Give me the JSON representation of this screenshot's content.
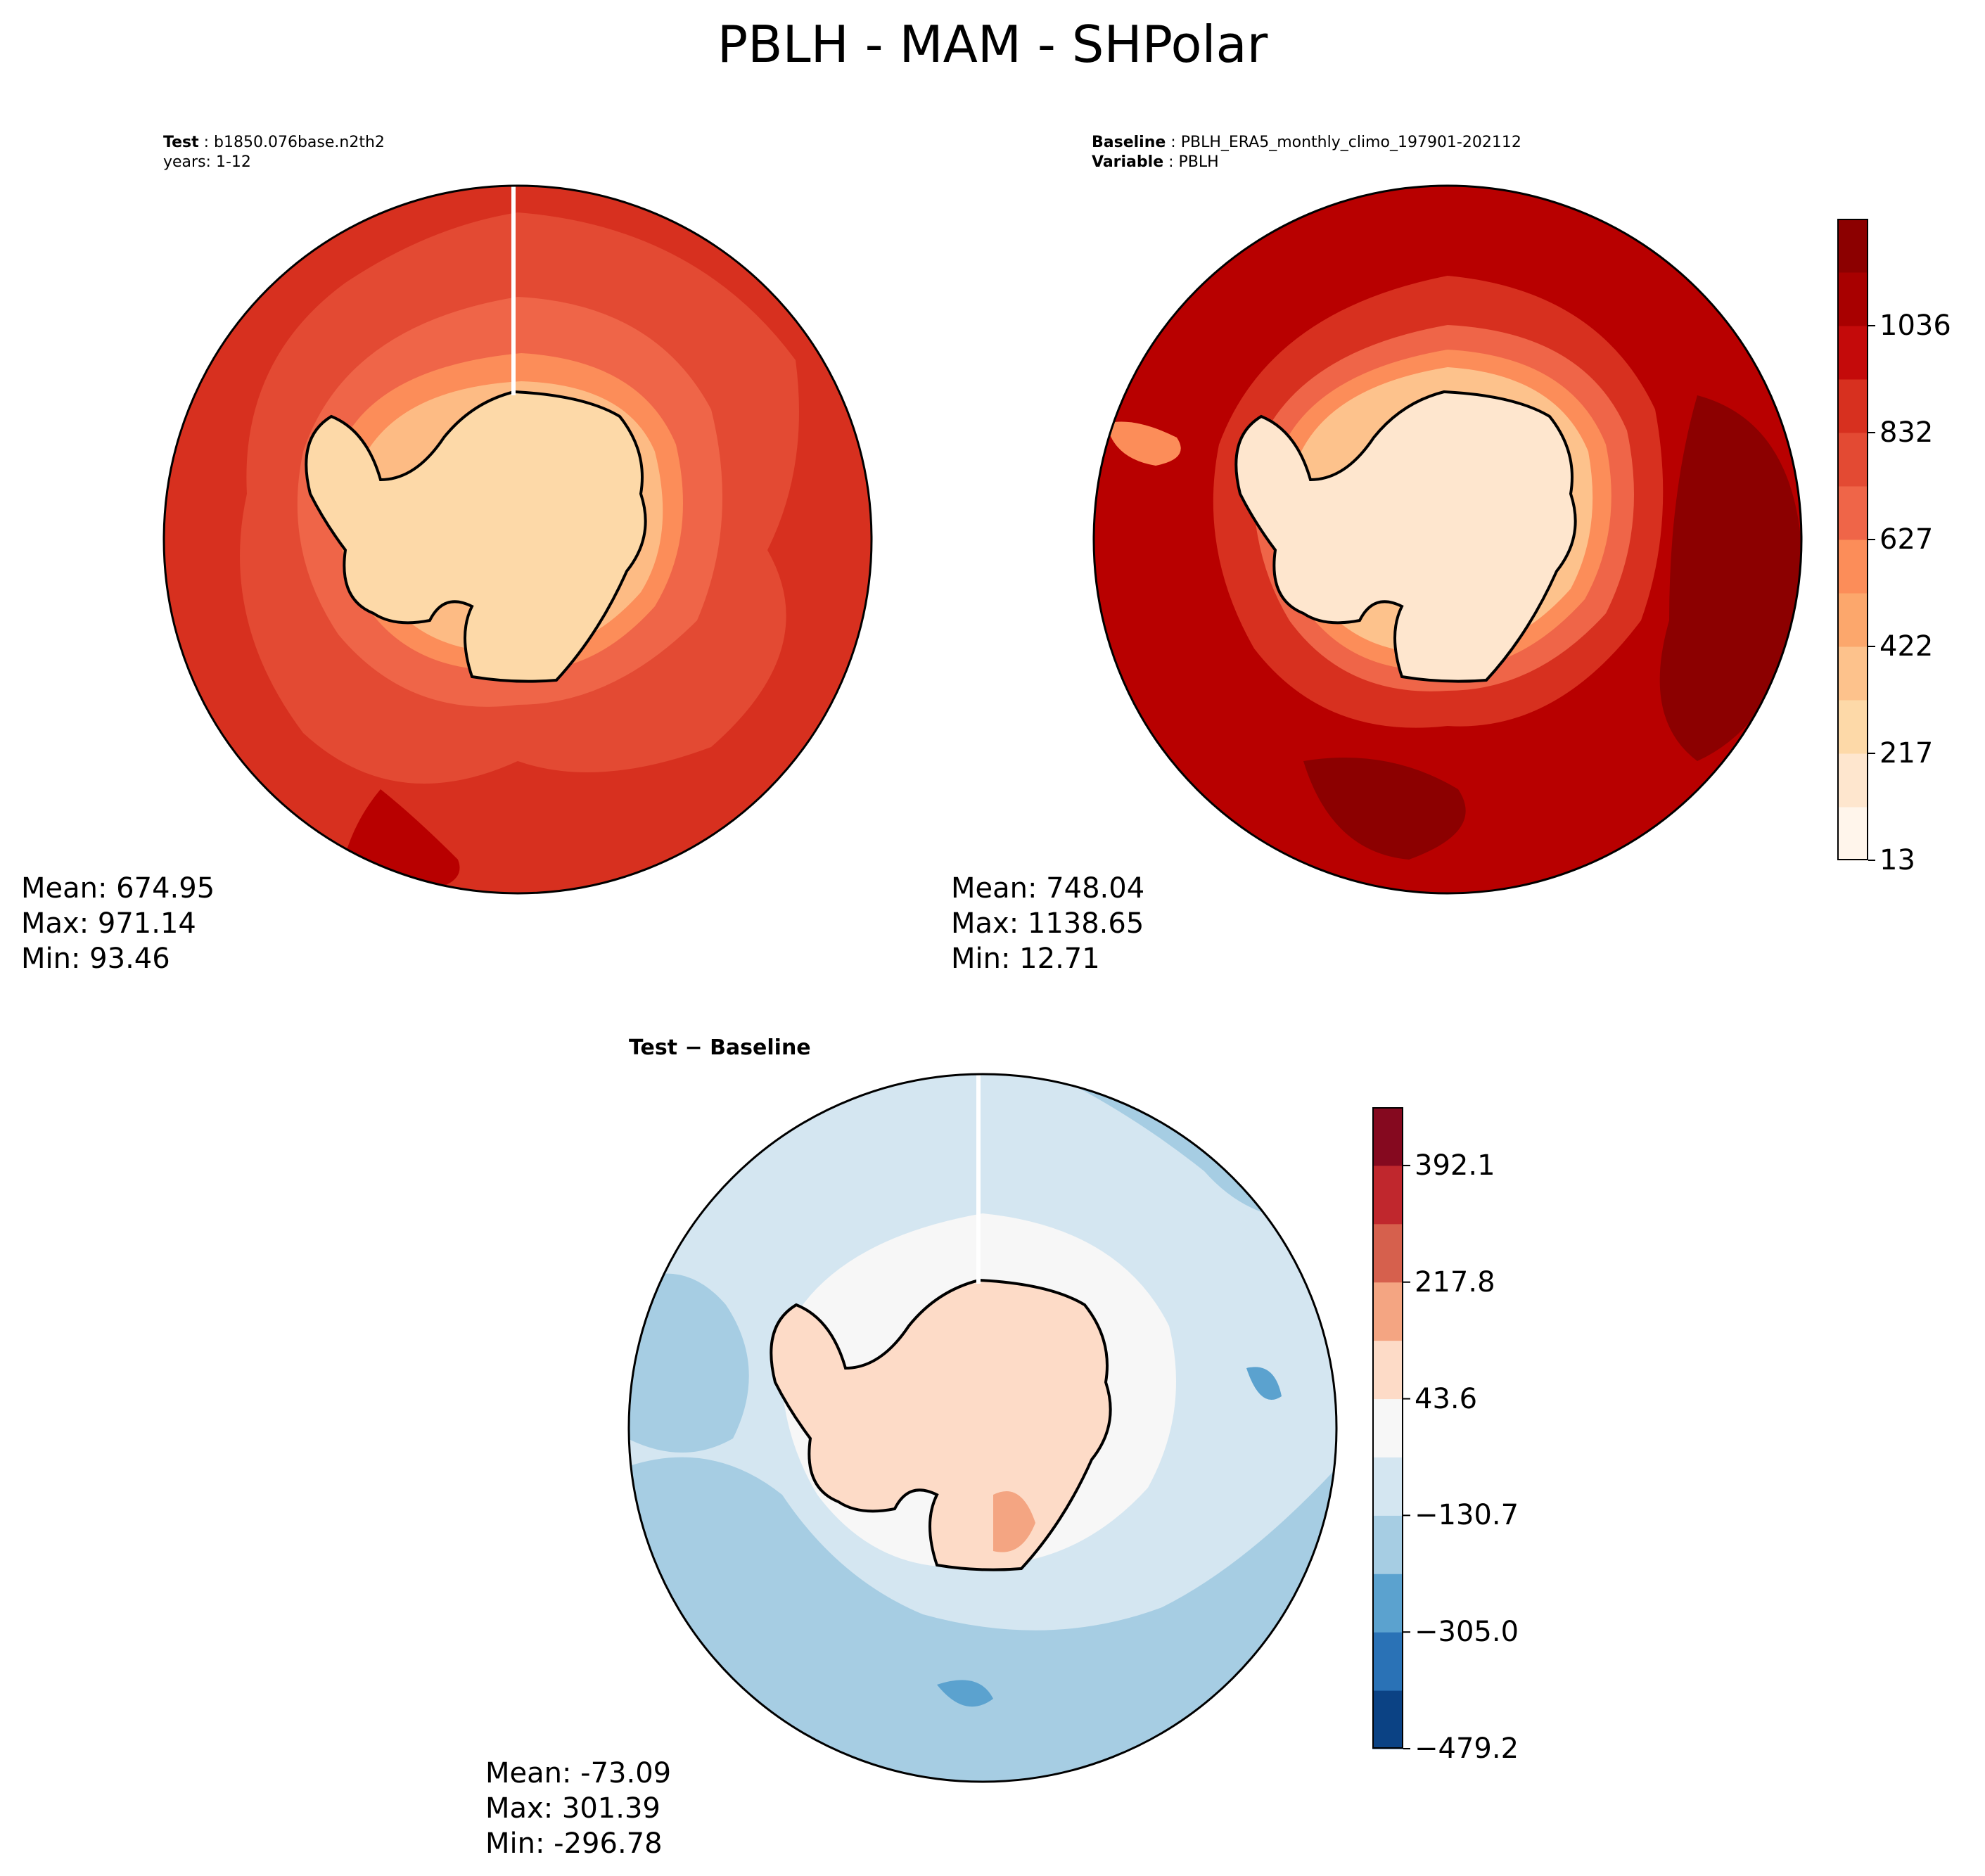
{
  "title": "PBLH - MAM - SHPolar",
  "panels": {
    "test": {
      "label_bold": "Test",
      "label_value": "b1850.076base.n2th2",
      "years": "years: 1-12",
      "stats": {
        "mean": "Mean: 674.95",
        "max": "Max: 971.14",
        "min": "Min: 93.46"
      }
    },
    "baseline": {
      "label_bold": "Baseline",
      "label_value": "PBLH_ERA5_monthly_climo_197901-202112",
      "variable_bold": "Variable",
      "variable_value": "PBLH",
      "stats": {
        "mean": "Mean: 748.04",
        "max": "Max: 1138.65",
        "min": "Min: 12.71"
      }
    },
    "difference": {
      "title_test": "Test",
      "title_minus": " − ",
      "title_baseline": "Baseline",
      "stats": {
        "mean": "Mean: -73.09",
        "max": "Max: 301.39",
        "min": "Min: -296.78"
      }
    }
  },
  "colorbars": {
    "abs": {
      "ticks": [
        "13",
        "217",
        "422",
        "627",
        "832",
        "1036"
      ],
      "colors": [
        "#fff5eb",
        "#fee6ce",
        "#fdd9a8",
        "#fdc28c",
        "#fca76c",
        "#fc8d59",
        "#ef6548",
        "#e34a33",
        "#d7301f",
        "#c40a0a",
        "#a80000",
        "#8c0000"
      ]
    },
    "diff": {
      "ticks": [
        "−479.2",
        "−305.0",
        "−130.7",
        "43.6",
        "217.8",
        "392.1"
      ],
      "colors": [
        "#0b4284",
        "#2a72b6",
        "#5ba2cf",
        "#a6cde3",
        "#d4e6f1",
        "#f7f7f7",
        "#fddbc7",
        "#f4a582",
        "#d6604d",
        "#c0272d",
        "#85091f"
      ]
    }
  },
  "map_colors": {
    "test_ocean": "#d7301f",
    "test_mid": "#e34a33",
    "test_ring1": "#ef6548",
    "test_ring2": "#fc8d59",
    "test_ring3": "#fdbb84",
    "test_ice": "#fdd9a8",
    "base_ocean": "#b80000",
    "base_dark": "#8c0000",
    "base_ring1": "#d7301f",
    "base_ring2": "#ef6548",
    "base_ring3": "#fc8d59",
    "base_ring4": "#fdc28c",
    "base_ice": "#fee6ce",
    "diff_ocean": "#d4e6f1",
    "diff_blue": "#a6cde3",
    "diff_dark": "#5ba2cf",
    "diff_white": "#f7f7f7",
    "diff_land": "#fddbc7",
    "diff_land2": "#f4a582",
    "coast": "#000000"
  }
}
